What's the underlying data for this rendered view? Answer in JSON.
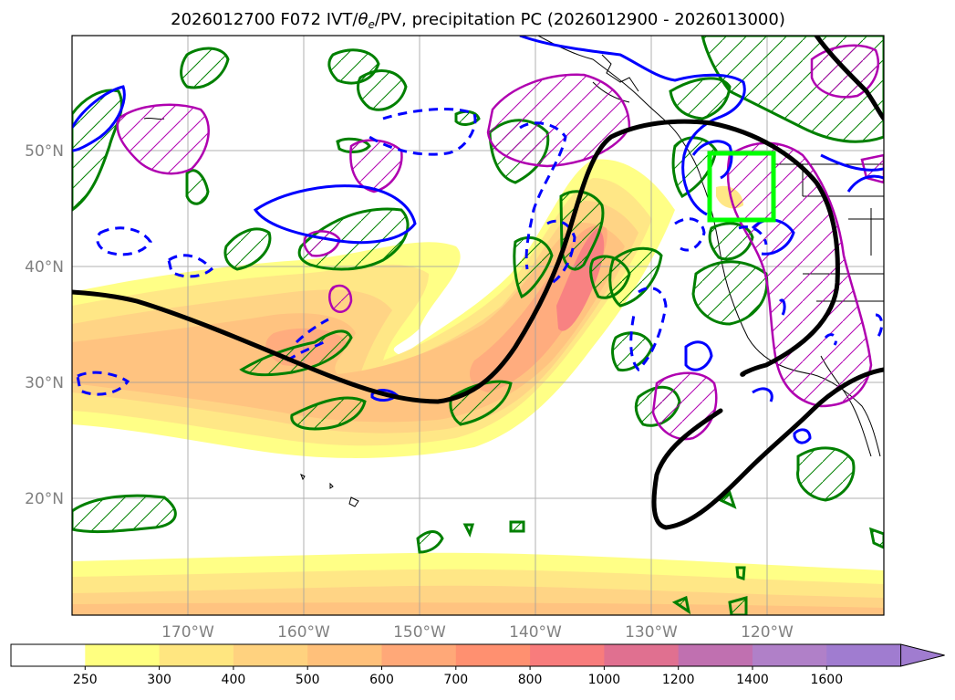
{
  "title_text": "2026012700 F072 IVT/",
  "title_theta": "θ",
  "title_sub": "e",
  "title_rest": "/PV, precipitation PC (2026012900 - 2026013000)",
  "lat_labels": [
    "50°N",
    "40°N",
    "30°N",
    "20°N"
  ],
  "lon_labels": [
    "170°W",
    "160°W",
    "150°W",
    "140°W",
    "130°W",
    "120°W"
  ],
  "colorbar": {
    "levels": [
      "250",
      "300",
      "400",
      "500",
      "600",
      "700",
      "800",
      "1000",
      "1200",
      "1400",
      "1600"
    ],
    "colors": [
      "#ffffff",
      "#ffff80",
      "#ffe680",
      "#ffd27f",
      "#ffc07a",
      "#ffa878",
      "#ff9070",
      "#f87c7c",
      "#e07090",
      "#c070b0",
      "#b080c8",
      "#a07cd0"
    ],
    "extend": "max"
  },
  "overlays": {
    "region_box_color": "#00ff00",
    "jet_contour_color": "#000000",
    "pv_contour_color": "#0000ff",
    "theta_contour_color": "#008000",
    "precip_contour_color": "#b000b0"
  }
}
